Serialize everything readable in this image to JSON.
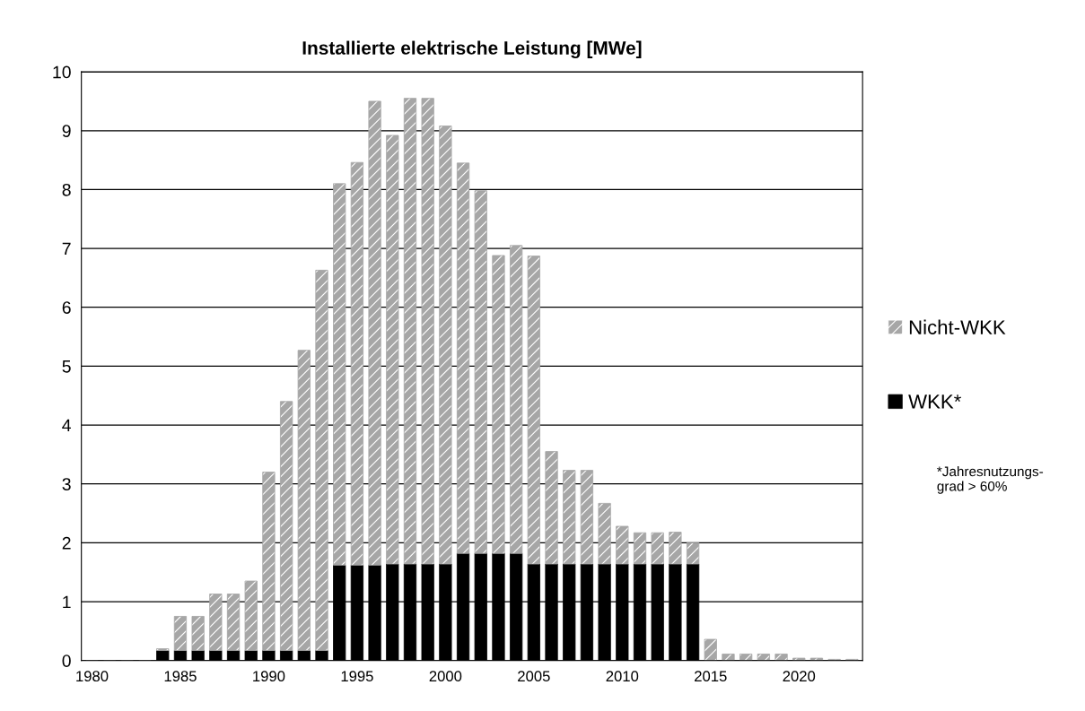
{
  "chart_data": {
    "type": "bar",
    "title": "Installierte elektrische Leistung [MWe]",
    "stacked": true,
    "categories": [
      "1980",
      null,
      null,
      null,
      null,
      "1985",
      null,
      null,
      null,
      null,
      "1990",
      null,
      null,
      null,
      null,
      "1995",
      null,
      null,
      null,
      null,
      "2000",
      null,
      null,
      null,
      null,
      "2005",
      null,
      null,
      null,
      null,
      "2010",
      null,
      null,
      null,
      null,
      "2015",
      null,
      null,
      null,
      null,
      "2020",
      null,
      null,
      null
    ],
    "series": [
      {
        "name": "WKK*",
        "color": "#000000",
        "values": [
          0,
          0,
          0,
          0,
          0.17,
          0.17,
          0.17,
          0.17,
          0.17,
          0.17,
          0.17,
          0.17,
          0.17,
          0.17,
          1.62,
          1.62,
          1.62,
          1.64,
          1.64,
          1.64,
          1.64,
          1.82,
          1.82,
          1.82,
          1.82,
          1.64,
          1.64,
          1.64,
          1.64,
          1.64,
          1.64,
          1.64,
          1.64,
          1.64,
          1.64,
          0,
          0,
          0,
          0,
          0,
          0,
          0,
          0,
          0
        ]
      },
      {
        "name": "Nicht-WKK",
        "color": "#a6a6a6",
        "values": [
          0,
          0,
          0,
          0,
          0.03,
          0.58,
          0.58,
          0.96,
          0.96,
          1.18,
          3.03,
          4.23,
          5.1,
          6.46,
          6.48,
          6.84,
          7.88,
          7.28,
          7.91,
          7.91,
          7.44,
          6.63,
          6.16,
          5.06,
          5.23,
          5.23,
          1.91,
          1.59,
          1.59,
          1.03,
          0.64,
          0.53,
          0.53,
          0.54,
          0.36,
          0.36,
          0.11,
          0.11,
          0.11,
          0.11,
          0.04,
          0.04,
          0.02,
          0.02
        ]
      }
    ],
    "ylim": [
      0,
      10
    ],
    "yticks": [
      0,
      1,
      2,
      3,
      4,
      5,
      6,
      7,
      8,
      9,
      10
    ],
    "grid": "y",
    "legend": "right",
    "annotations": [
      "*Jahresnutzungs-\ngrad > 60%"
    ]
  }
}
